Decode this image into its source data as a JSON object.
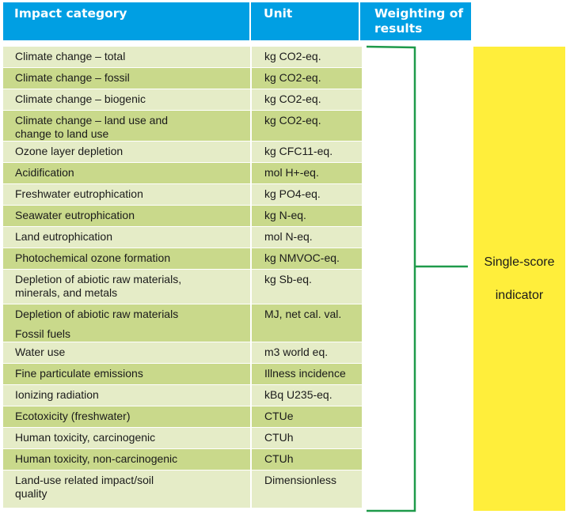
{
  "header": {
    "col_category": "Impact category",
    "col_unit": "Unit",
    "col_weighting_line1": "Weighting of",
    "col_weighting_line2": "results"
  },
  "rows": [
    {
      "category": [
        "Climate change – total"
      ],
      "unit": "kg CO2-eq.",
      "shade": "light"
    },
    {
      "category": [
        "Climate change – fossil"
      ],
      "unit": "kg CO2-eq.",
      "shade": "dark"
    },
    {
      "category": [
        "Climate change – biogenic"
      ],
      "unit": "kg CO2-eq.",
      "shade": "light"
    },
    {
      "category": [
        "Climate change – land use and",
        "change to land use"
      ],
      "unit": "kg CO2-eq.",
      "shade": "dark"
    },
    {
      "category": [
        "Ozone layer depletion"
      ],
      "unit": "kg CFC11-eq.",
      "shade": "light"
    },
    {
      "category": [
        "Acidification"
      ],
      "unit": "mol H+-eq.",
      "shade": "dark"
    },
    {
      "category": [
        "Freshwater eutrophication"
      ],
      "unit": "kg PO4-eq.",
      "shade": "light"
    },
    {
      "category": [
        "Seawater eutrophication"
      ],
      "unit": "kg N-eq.",
      "shade": "dark"
    },
    {
      "category": [
        "Land eutrophication"
      ],
      "unit": "mol N-eq.",
      "shade": "light"
    },
    {
      "category": [
        "Photochemical ozone formation"
      ],
      "unit": "kg NMVOC-eq.",
      "shade": "dark"
    },
    {
      "category": [
        "Depletion of abiotic raw materials,",
        "minerals, and metals"
      ],
      "unit": "kg Sb-eq.",
      "shade": "light"
    },
    {
      "category": [
        "Depletion of abiotic raw materials",
        "Fossil fuels"
      ],
      "unit": "MJ, net cal. val.",
      "shade": "dark",
      "spaced": true
    },
    {
      "category": [
        "Water use"
      ],
      "unit": "m3 world eq.",
      "shade": "light"
    },
    {
      "category": [
        "Fine particulate emissions"
      ],
      "unit": "Illness incidence",
      "shade": "dark"
    },
    {
      "category": [
        "Ionizing radiation"
      ],
      "unit": "kBq U235-eq.",
      "shade": "light"
    },
    {
      "category": [
        "Ecotoxicity (freshwater)"
      ],
      "unit": "CTUe",
      "shade": "dark"
    },
    {
      "category": [
        "Human toxicity, carcinogenic"
      ],
      "unit": "CTUh",
      "shade": "light"
    },
    {
      "category": [
        "Human toxicity, non-carcinogenic"
      ],
      "unit": "CTUh",
      "shade": "dark"
    },
    {
      "category": [
        "Land-use related impact/soil",
        "quality"
      ],
      "unit": "Dimensionless",
      "shade": "light"
    }
  ],
  "result": {
    "line1": "Single-score",
    "line2": "indicator"
  },
  "colors": {
    "header_blue": "#009fe3",
    "row_light": "#e5ecc7",
    "row_dark": "#c9d98b",
    "bracket_green": "#1e9a4a",
    "result_yellow": "#ffee3b"
  }
}
